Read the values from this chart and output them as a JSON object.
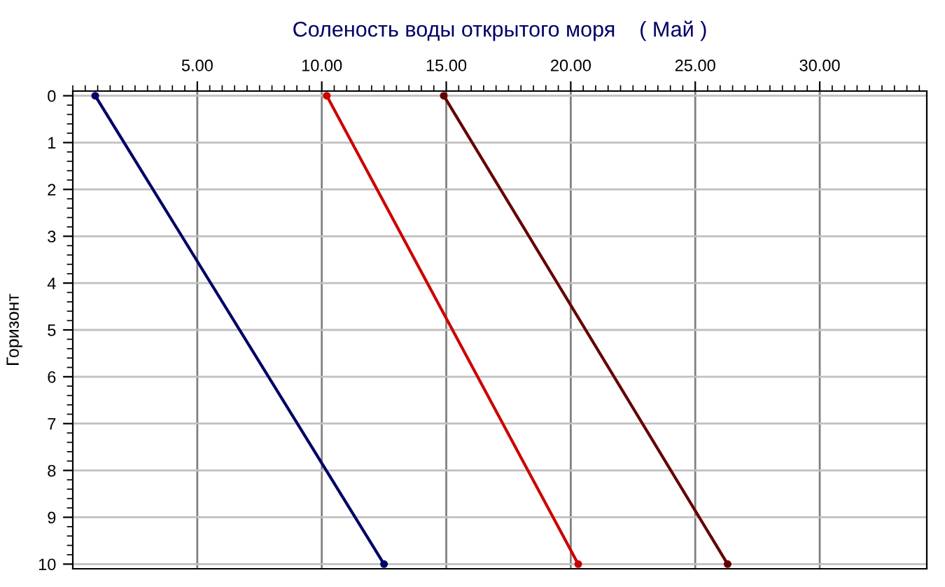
{
  "chart_data": {
    "type": "line",
    "title": "Соленость воды открытого моря    ( Май )",
    "ylabel": "Горизонт",
    "series": [
      {
        "color": "#000066",
        "x": [
          0.9,
          12.5
        ],
        "values": [
          0,
          10
        ]
      },
      {
        "color": "#cc0000",
        "x": [
          10.2,
          20.3
        ],
        "values": [
          0,
          10
        ]
      },
      {
        "color": "#660000",
        "x": [
          14.9,
          26.3
        ],
        "values": [
          0,
          10
        ]
      }
    ],
    "xlim": [
      0,
      34.3
    ],
    "ylim": [
      10.1,
      -0.1
    ],
    "xticks": [
      {
        "value": 5,
        "label": "5.00"
      },
      {
        "value": 10,
        "label": "10.00"
      },
      {
        "value": 15,
        "label": "15.00"
      },
      {
        "value": 20,
        "label": "20.00"
      },
      {
        "value": 25,
        "label": "25.00"
      },
      {
        "value": 30,
        "label": "30.00"
      }
    ],
    "yticks": [
      0,
      1,
      2,
      3,
      4,
      5,
      6,
      7,
      8,
      9,
      10
    ],
    "grid": true,
    "marker": "circle",
    "line_style": "solid",
    "legend": false
  }
}
